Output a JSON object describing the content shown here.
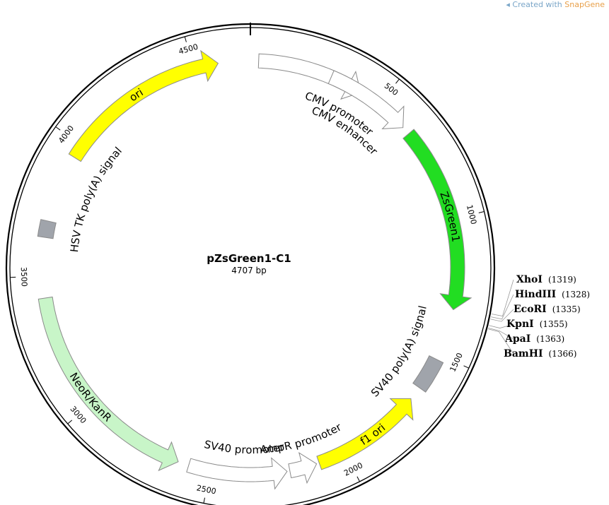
{
  "credit": {
    "prefix": "Created with ",
    "brand": "SnapGene"
  },
  "plasmid": {
    "name": "pZsGreen1-C1",
    "length_label": "4707 bp",
    "length": 4707
  },
  "ticks": [
    {
      "pos": 500,
      "label": "500"
    },
    {
      "pos": 1000,
      "label": "1000"
    },
    {
      "pos": 1500,
      "label": "1500"
    },
    {
      "pos": 2000,
      "label": "2000"
    },
    {
      "pos": 2500,
      "label": "2500"
    },
    {
      "pos": 3000,
      "label": "3000"
    },
    {
      "pos": 3500,
      "label": "3500"
    },
    {
      "pos": 4000,
      "label": "4000"
    },
    {
      "pos": 4500,
      "label": "4500"
    }
  ],
  "features": [
    {
      "id": "cmv-enhancer",
      "label": "CMV enhancer",
      "start": 30,
      "end": 420,
      "type": "arrow",
      "direction": 1,
      "color": "#ffffff"
    },
    {
      "id": "cmv-promoter",
      "label": "CMV promoter",
      "start": 300,
      "end": 620,
      "type": "arrow",
      "direction": 1,
      "color": "#ffffff"
    },
    {
      "id": "zsgreen1",
      "label": "ZsGreen1",
      "start": 650,
      "end": 1330,
      "type": "arrow",
      "direction": 1,
      "color": "#22dd22"
    },
    {
      "id": "sv40-polya",
      "label": "SV40 poly(A) signal",
      "start": 1520,
      "end": 1640,
      "type": "box",
      "color": "#a0a4ab"
    },
    {
      "id": "f1-ori",
      "label": "f1 ori",
      "start": 1690,
      "end": 2100,
      "type": "arrow",
      "direction": -1,
      "color": "#ffff00"
    },
    {
      "id": "ampr-promoter",
      "label": "AmpR promoter",
      "start": 2110,
      "end": 2210,
      "type": "arrow",
      "direction": -1,
      "color": "#ffffff"
    },
    {
      "id": "sv40-promoter",
      "label": "SV40 promoter",
      "start": 2220,
      "end": 2580,
      "type": "arrow",
      "direction": -1,
      "color": "#ffffff"
    },
    {
      "id": "neor-kanr",
      "label": "NeoR/KanR",
      "start": 2620,
      "end": 3420,
      "type": "arrow",
      "direction": -1,
      "color": "#c8f5c8"
    },
    {
      "id": "hsv-tk-polya",
      "label": "HSV TK poly(A) signal",
      "start": 3640,
      "end": 3700,
      "type": "box",
      "color": "#a0a4ab"
    },
    {
      "id": "ori",
      "label": "ori",
      "start": 3950,
      "end": 4590,
      "type": "arrow",
      "direction": 1,
      "color": "#ffff00"
    }
  ],
  "sites": [
    {
      "name": "XhoI",
      "pos_label": "(1319)",
      "pos": 1319
    },
    {
      "name": "HindIII",
      "pos_label": "(1328)",
      "pos": 1328
    },
    {
      "name": "EcoRI",
      "pos_label": "(1335)",
      "pos": 1335
    },
    {
      "name": "KpnI",
      "pos_label": "(1355)",
      "pos": 1355
    },
    {
      "name": "ApaI",
      "pos_label": "(1363)",
      "pos": 1363
    },
    {
      "name": "BamHI",
      "pos_label": "(1366)",
      "pos": 1366
    }
  ],
  "colors": {
    "backbone": "#000000",
    "arrow_stroke": "#8a8a8a",
    "credit": "#7aa6c8",
    "brand": "#e8a04a"
  }
}
